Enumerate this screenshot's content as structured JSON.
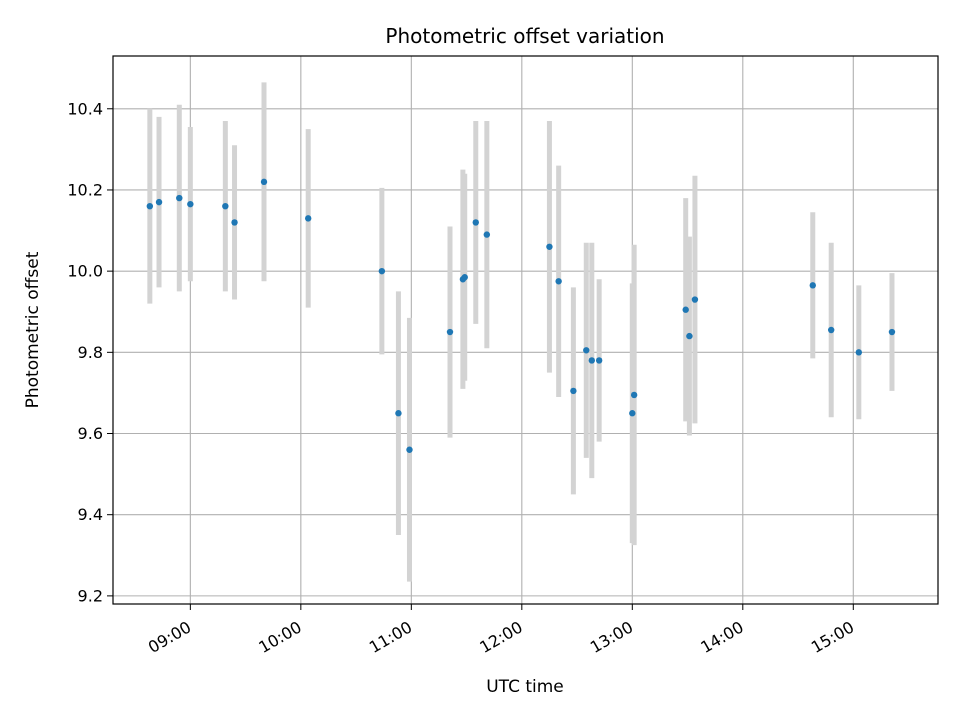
{
  "chart_data": {
    "type": "scatter",
    "title": "Photometric offset variation",
    "xlabel": "UTC time",
    "ylabel": "Photometric offset",
    "xlim": [
      "08:18",
      "15:46"
    ],
    "ylim": [
      9.18,
      10.53
    ],
    "grid": true,
    "x_ticks": [
      "09:00",
      "10:00",
      "11:00",
      "12:00",
      "13:00",
      "14:00",
      "15:00"
    ],
    "y_ticks": [
      9.2,
      9.4,
      9.6,
      9.8,
      10.0,
      10.2,
      10.4
    ],
    "colors": {
      "point": "#1f77b4",
      "errorbar": "#d3d3d3",
      "grid": "#b0b0b0"
    },
    "points": [
      {
        "x": "08:38",
        "y": 10.16,
        "err": 0.24
      },
      {
        "x": "08:43",
        "y": 10.17,
        "err": 0.21
      },
      {
        "x": "08:54",
        "y": 10.18,
        "err": 0.23
      },
      {
        "x": "09:00",
        "y": 10.165,
        "err": 0.19
      },
      {
        "x": "09:19",
        "y": 10.16,
        "err": 0.21
      },
      {
        "x": "09:24",
        "y": 10.12,
        "err": 0.19
      },
      {
        "x": "09:40",
        "y": 10.22,
        "err": 0.245
      },
      {
        "x": "10:04",
        "y": 10.13,
        "err": 0.22
      },
      {
        "x": "10:44",
        "y": 10.0,
        "err": 0.205
      },
      {
        "x": "10:53",
        "y": 9.65,
        "err": 0.3
      },
      {
        "x": "10:59",
        "y": 9.56,
        "err": 0.325
      },
      {
        "x": "11:21",
        "y": 9.85,
        "err": 0.26
      },
      {
        "x": "11:28",
        "y": 9.98,
        "err": 0.27
      },
      {
        "x": "11:29",
        "y": 9.985,
        "err": 0.255
      },
      {
        "x": "11:35",
        "y": 10.12,
        "err": 0.25
      },
      {
        "x": "11:41",
        "y": 10.09,
        "err": 0.28
      },
      {
        "x": "12:15",
        "y": 10.06,
        "err": 0.31
      },
      {
        "x": "12:20",
        "y": 9.975,
        "err": 0.285
      },
      {
        "x": "12:28",
        "y": 9.705,
        "err": 0.255
      },
      {
        "x": "12:35",
        "y": 9.805,
        "err": 0.265
      },
      {
        "x": "12:38",
        "y": 9.78,
        "err": 0.29
      },
      {
        "x": "12:42",
        "y": 9.78,
        "err": 0.2
      },
      {
        "x": "13:00",
        "y": 9.65,
        "err": 0.32
      },
      {
        "x": "13:01",
        "y": 9.695,
        "err": 0.37
      },
      {
        "x": "13:29",
        "y": 9.905,
        "err": 0.275
      },
      {
        "x": "13:31",
        "y": 9.84,
        "err": 0.245
      },
      {
        "x": "13:34",
        "y": 9.93,
        "err": 0.305
      },
      {
        "x": "14:38",
        "y": 9.965,
        "err": 0.18
      },
      {
        "x": "14:48",
        "y": 9.855,
        "err": 0.215
      },
      {
        "x": "15:03",
        "y": 9.8,
        "err": 0.165
      },
      {
        "x": "15:21",
        "y": 9.85,
        "err": 0.145
      }
    ]
  }
}
